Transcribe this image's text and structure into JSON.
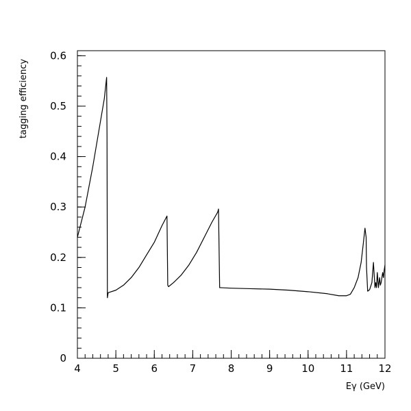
{
  "chart_data": {
    "type": "line",
    "title": "",
    "xlabel": "Eγ (GeV)",
    "ylabel": "tagging efficiency",
    "xlim": [
      4,
      12
    ],
    "ylim": [
      0,
      0.61
    ],
    "x_ticks": [
      4,
      5,
      6,
      7,
      8,
      9,
      10,
      11,
      12
    ],
    "x_tick_labels": [
      "4",
      "5",
      "6",
      "7",
      "8",
      "9",
      "10",
      "11",
      "12"
    ],
    "y_ticks": [
      0,
      0.1,
      0.2,
      0.3,
      0.4,
      0.5,
      0.6
    ],
    "y_tick_labels": [
      "0",
      "0.1",
      "0.2",
      "0.3",
      "0.4",
      "0.5",
      "0.6"
    ],
    "x_minor_step": 0.2,
    "y_minor_step": 0.02,
    "grid": false,
    "legend": "none",
    "line_color": "#000000",
    "series": [
      {
        "x": [
          4.0,
          4.2,
          4.4,
          4.6,
          4.7,
          4.76,
          4.77,
          4.78,
          4.8,
          5.0,
          5.2,
          5.4,
          5.6,
          5.8,
          6.0,
          6.2,
          6.33,
          6.35,
          6.37,
          6.5,
          6.7,
          6.9,
          7.1,
          7.3,
          7.5,
          7.65,
          7.67,
          7.7,
          7.72,
          8.0,
          8.5,
          9.0,
          9.5,
          10.0,
          10.5,
          10.8,
          11.0,
          11.1,
          11.2,
          11.3,
          11.38,
          11.44,
          11.48,
          11.51,
          11.52,
          11.55,
          11.6,
          11.66,
          11.7,
          11.74,
          11.76,
          11.78,
          11.8,
          11.83,
          11.86,
          11.88,
          11.9,
          11.92,
          11.94,
          11.96,
          11.98,
          12.0
        ],
        "y": [
          0.24,
          0.3,
          0.38,
          0.47,
          0.515,
          0.557,
          0.445,
          0.12,
          0.13,
          0.135,
          0.145,
          0.16,
          0.18,
          0.205,
          0.23,
          0.263,
          0.282,
          0.145,
          0.142,
          0.15,
          0.165,
          0.185,
          0.21,
          0.24,
          0.27,
          0.29,
          0.296,
          0.14,
          0.14,
          0.139,
          0.138,
          0.137,
          0.135,
          0.132,
          0.128,
          0.124,
          0.124,
          0.127,
          0.14,
          0.16,
          0.19,
          0.23,
          0.258,
          0.24,
          0.18,
          0.133,
          0.136,
          0.15,
          0.19,
          0.14,
          0.15,
          0.14,
          0.17,
          0.14,
          0.16,
          0.145,
          0.15,
          0.16,
          0.17,
          0.16,
          0.175,
          0.185
        ]
      }
    ]
  }
}
